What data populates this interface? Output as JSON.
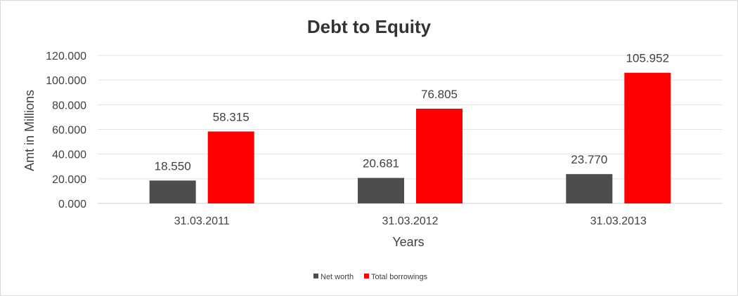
{
  "chart_data": {
    "type": "bar",
    "title": "Debt to Equity",
    "xlabel": "Years",
    "ylabel": "Amt in Millions",
    "categories": [
      "31.03.2011",
      "31.03.2012",
      "31.03.2013"
    ],
    "series": [
      {
        "name": "Net worth",
        "color": "#4d4d4d",
        "values": [
          18.55,
          20.681,
          23.77
        ],
        "labels": [
          "18.550",
          "20.681",
          "23.770"
        ]
      },
      {
        "name": "Total borrowings",
        "color": "#ff0000",
        "values": [
          58.315,
          76.805,
          105.952
        ],
        "labels": [
          "58.315",
          "76.805",
          "105.952"
        ]
      }
    ],
    "ylim": [
      0,
      120
    ],
    "yticks": [
      0,
      20,
      40,
      60,
      80,
      100,
      120
    ],
    "ytick_labels": [
      "0.000",
      "20.000",
      "40.000",
      "60.000",
      "80.000",
      "100.000",
      "120.000"
    ],
    "grid": true,
    "legend_position": "bottom"
  }
}
